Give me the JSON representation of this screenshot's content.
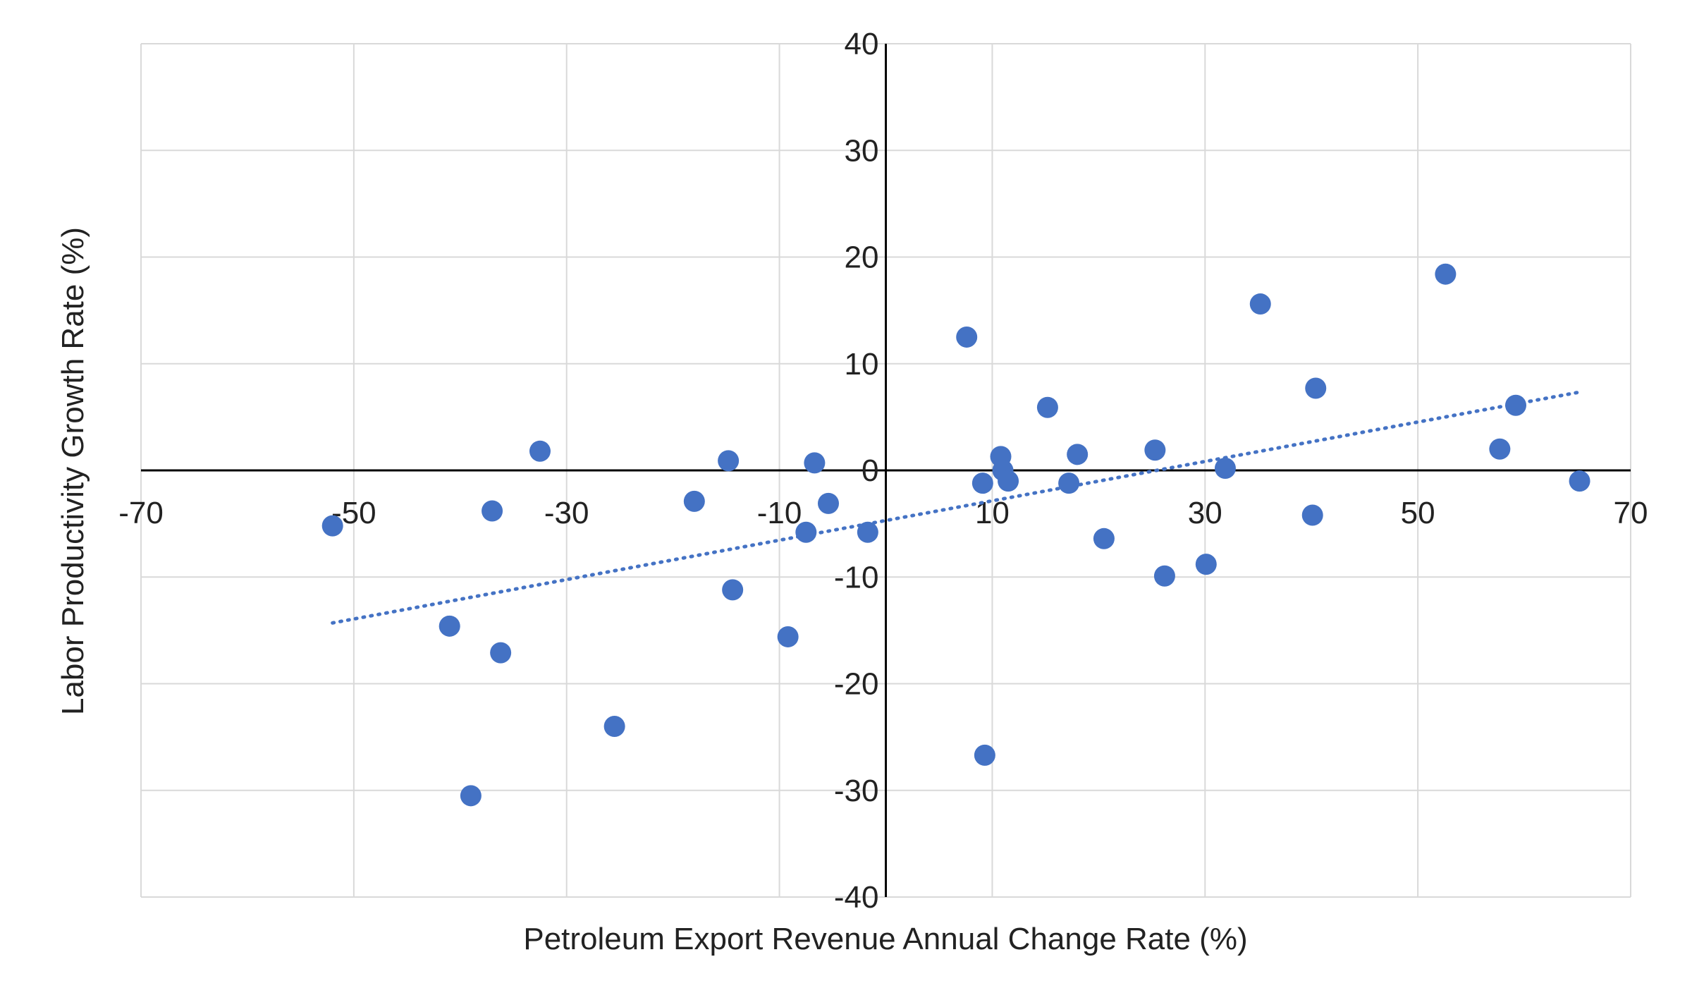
{
  "chart_data": {
    "type": "scatter",
    "title": "",
    "xlabel": "Petroleum Export Revenue Annual Change Rate (%)",
    "ylabel": "Labor Productivity Growth Rate (%)",
    "xlim": [
      -70,
      70
    ],
    "ylim": [
      -40,
      40
    ],
    "x_ticks": [
      -70,
      -50,
      -30,
      -10,
      10,
      30,
      50,
      70
    ],
    "y_ticks": [
      -40,
      -30,
      -20,
      -10,
      0,
      10,
      20,
      30,
      40
    ],
    "grid": true,
    "legend": "none",
    "point_color": "#4472c4",
    "trendline": {
      "type": "linear",
      "style": "dotted",
      "x_range": [
        -52,
        65
      ],
      "y_start": -14.3,
      "y_end": 7.3
    },
    "points": [
      {
        "x": -52,
        "y": -5.2
      },
      {
        "x": -41,
        "y": -14.6
      },
      {
        "x": -39,
        "y": -30.5
      },
      {
        "x": -37,
        "y": -3.8
      },
      {
        "x": -36.2,
        "y": -17.1
      },
      {
        "x": -32.5,
        "y": 1.8
      },
      {
        "x": -25.5,
        "y": -24
      },
      {
        "x": -18,
        "y": -2.9
      },
      {
        "x": -14.8,
        "y": 0.9
      },
      {
        "x": -14.4,
        "y": -11.2
      },
      {
        "x": -9.2,
        "y": -15.6
      },
      {
        "x": -7.5,
        "y": -5.8
      },
      {
        "x": -6.7,
        "y": 0.7
      },
      {
        "x": -5.4,
        "y": -3.1
      },
      {
        "x": -1.7,
        "y": -5.8
      },
      {
        "x": 7.6,
        "y": 12.5
      },
      {
        "x": 9.1,
        "y": -1.2
      },
      {
        "x": 9.3,
        "y": -26.7
      },
      {
        "x": 10.8,
        "y": 1.3
      },
      {
        "x": 11,
        "y": 0
      },
      {
        "x": 11.5,
        "y": -1
      },
      {
        "x": 15.2,
        "y": 5.9
      },
      {
        "x": 17.2,
        "y": -1.2
      },
      {
        "x": 18,
        "y": 1.5
      },
      {
        "x": 20.5,
        "y": -6.4
      },
      {
        "x": 25.3,
        "y": 1.9
      },
      {
        "x": 26.2,
        "y": -9.9
      },
      {
        "x": 30.1,
        "y": -8.8
      },
      {
        "x": 31.9,
        "y": 0.2
      },
      {
        "x": 35.2,
        "y": 15.6
      },
      {
        "x": 40.1,
        "y": -4.2
      },
      {
        "x": 40.4,
        "y": 7.7
      },
      {
        "x": 52.6,
        "y": 18.4
      },
      {
        "x": 57.7,
        "y": 2
      },
      {
        "x": 59.2,
        "y": 6.1
      },
      {
        "x": 65.2,
        "y": -1
      }
    ]
  }
}
